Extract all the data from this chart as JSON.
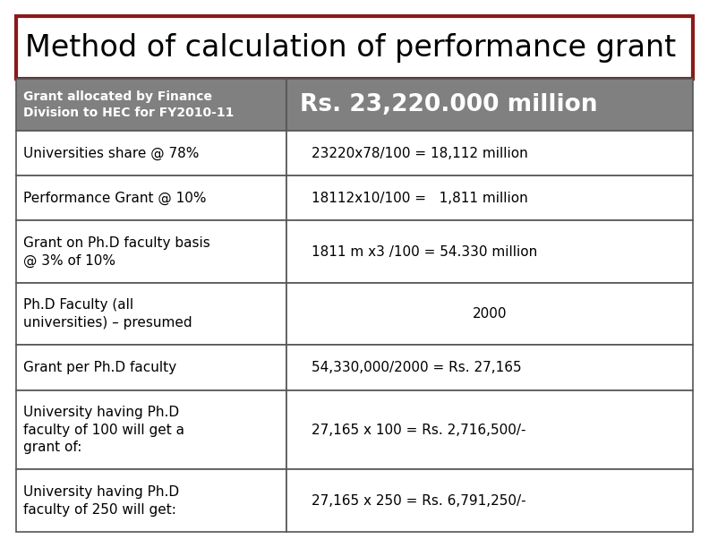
{
  "title": "Method of calculation of performance grant",
  "title_border_color": "#8B1A1A",
  "title_bg_color": "#FFFFFF",
  "title_fontsize": 24,
  "header_bg_color": "#808080",
  "header_text_color": "#FFFFFF",
  "header_col1": "Grant allocated by Finance\nDivision to HEC for FY2010-11",
  "header_col2": "Rs. 23,220.000 million",
  "header_col1_fontsize": 10,
  "header_col2_fontsize": 19,
  "border_color": "#555555",
  "rows": [
    [
      "Universities share @ 78%",
      "23220x78/100 = 18,112 million"
    ],
    [
      "Performance Grant @ 10%",
      "18112x10/100 =   1,811 million"
    ],
    [
      "Grant on Ph.D faculty basis\n@ 3% of 10%",
      "1811 m x3 /100 = 54.330 million"
    ],
    [
      "Ph.D Faculty (all\nuniversities) – presumed",
      "2000"
    ],
    [
      "Grant per Ph.D faculty",
      "54,330,000/2000 = Rs. 27,165"
    ],
    [
      "University having Ph.D\nfaculty of 100 will get a\ngrant of:",
      "27,165 x 100 = Rs. 2,716,500/-"
    ],
    [
      "University having Ph.D\nfaculty of 250 will get:",
      "27,165 x 250 = Rs. 6,791,250/-"
    ]
  ],
  "col_split": 0.4,
  "row_fontsize": 11,
  "fig_bg_color": "#FFFFFF"
}
